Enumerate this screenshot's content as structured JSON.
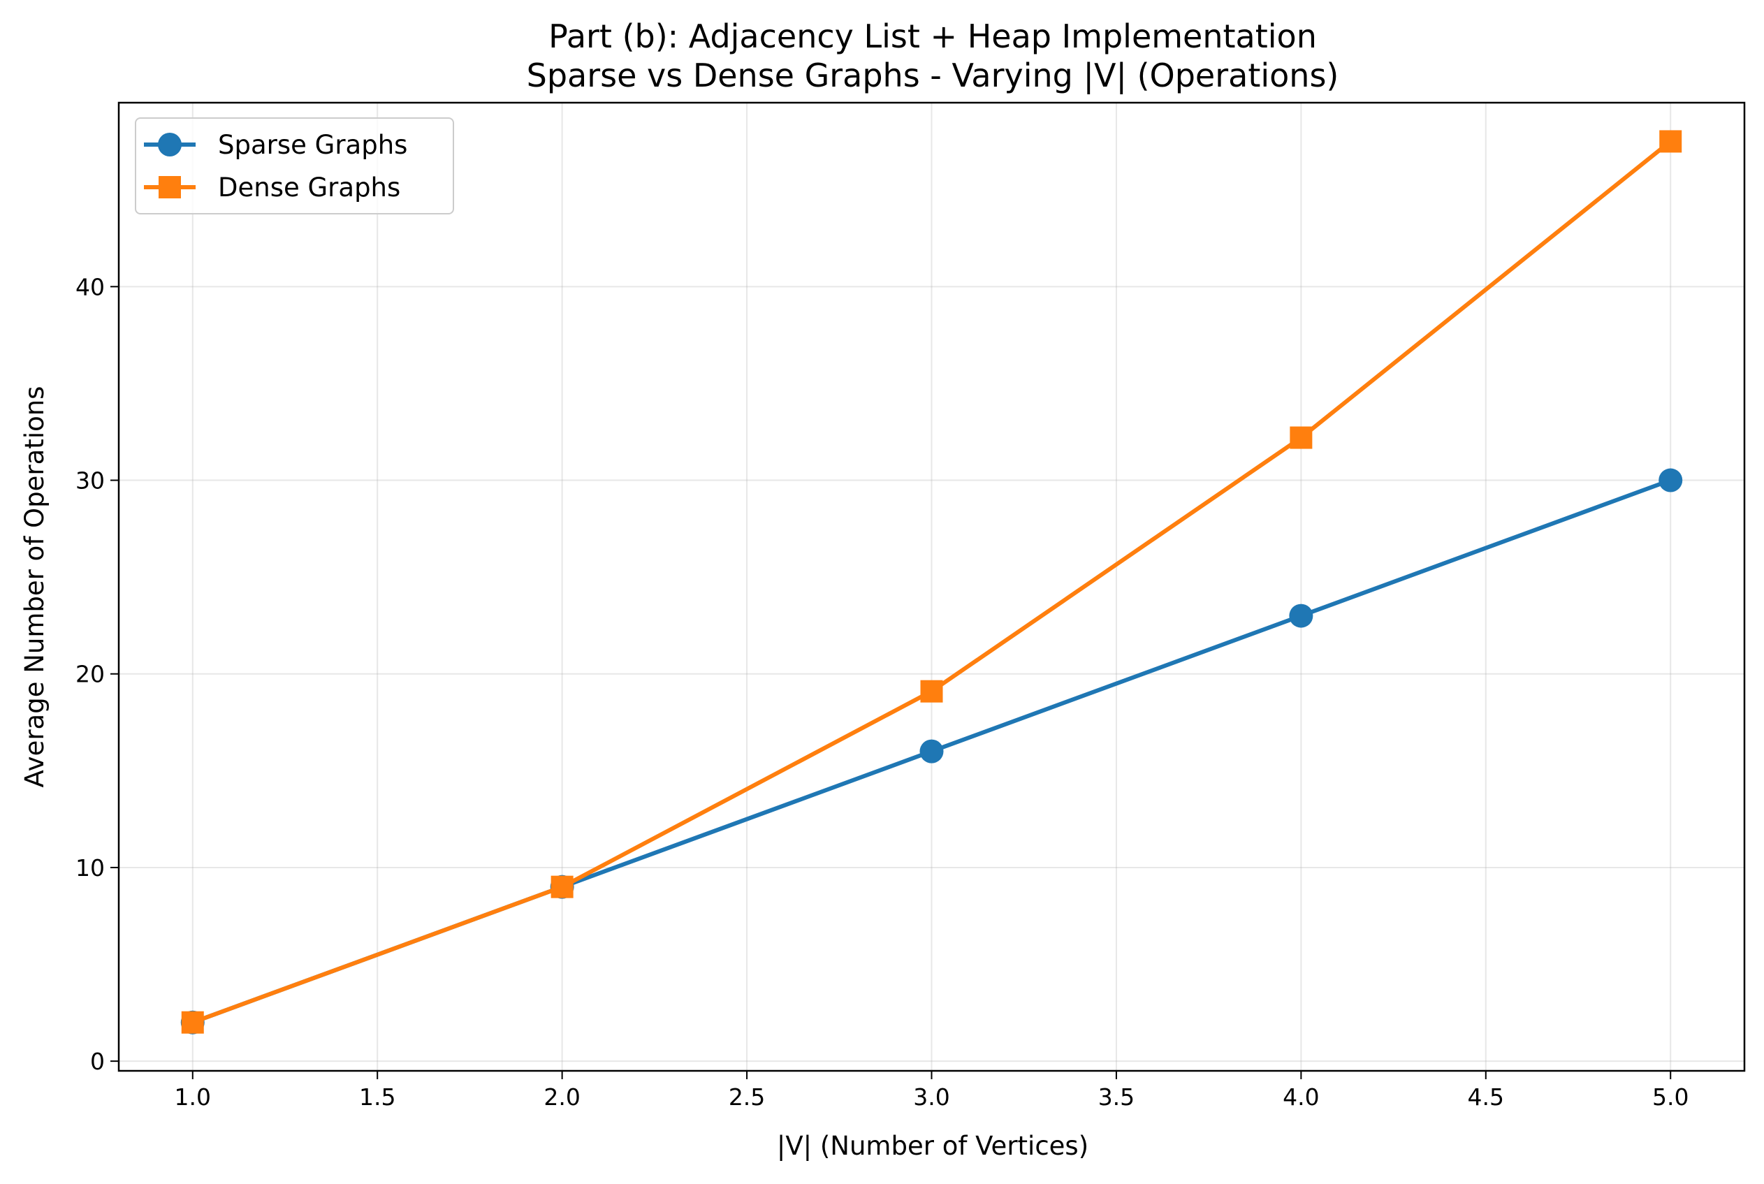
{
  "chart_data": {
    "type": "line",
    "title_line1": "Part (b): Adjacency List + Heap Implementation",
    "title_line2": "Sparse vs Dense Graphs - Varying |V| (Operations)",
    "xlabel": "|V| (Number of Vertices)",
    "ylabel": "Average Number of Operations",
    "x": [
      1,
      2,
      3,
      4,
      5
    ],
    "xlim": [
      0.8,
      5.2
    ],
    "ylim": [
      -0.5,
      49.5
    ],
    "xticks": [
      1.0,
      1.5,
      2.0,
      2.5,
      3.0,
      3.5,
      4.0,
      4.5,
      5.0
    ],
    "xtick_labels": [
      "1.0",
      "1.5",
      "2.0",
      "2.5",
      "3.0",
      "3.5",
      "4.0",
      "4.5",
      "5.0"
    ],
    "yticks": [
      0,
      10,
      20,
      30,
      40
    ],
    "ytick_labels": [
      "0",
      "10",
      "20",
      "30",
      "40"
    ],
    "grid": true,
    "legend_position": "top-left",
    "series": [
      {
        "name": "Sparse Graphs",
        "values": [
          2,
          9,
          16,
          23,
          30
        ],
        "marker": "circle",
        "color": "#1f77b4"
      },
      {
        "name": "Dense Graphs",
        "values": [
          2,
          9,
          19.1,
          32.2,
          47.5
        ],
        "marker": "square",
        "color": "#ff7f0e"
      }
    ]
  }
}
